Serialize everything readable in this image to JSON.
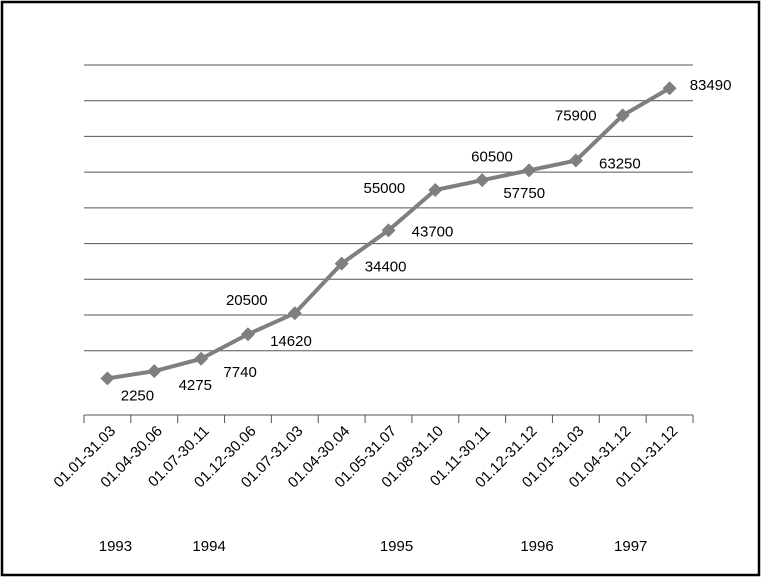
{
  "chart_data": {
    "type": "line",
    "categories": [
      "01.01-31.03",
      "01.04-30.06",
      "01.07-30.11",
      "01.12-30.06",
      "01.07-31.03",
      "01.04-30.04",
      "01.05-31.07",
      "01.08-31.10",
      "01.11-30.11",
      "01.12-31.12",
      "01.01-31.03",
      "01.04-31.12",
      "01.01-31.12"
    ],
    "years": [
      "1993",
      null,
      "1994",
      null,
      null,
      null,
      "1995",
      null,
      null,
      "1996",
      null,
      "1997",
      null
    ],
    "series": [
      {
        "color": "#7f7f7f",
        "values": [
          2250,
          4275,
          7740,
          14620,
          20500,
          34400,
          43700,
          55000,
          57750,
          60500,
          63250,
          75900,
          83490
        ]
      }
    ],
    "ylim": [
      -8000,
      90000
    ],
    "yticks": [
      10000,
      20000,
      30000,
      40000,
      50000,
      60000,
      70000,
      80000,
      90000
    ],
    "grid": true
  }
}
